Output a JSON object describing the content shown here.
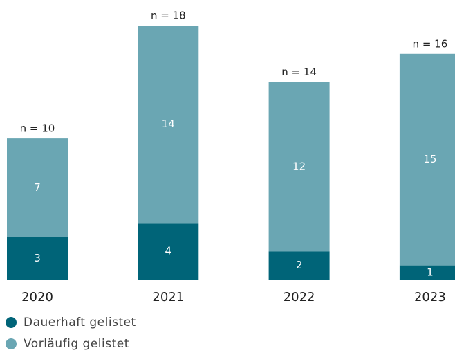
{
  "chart_data": {
    "type": "stacked_bar",
    "categories": [
      "2020",
      "2021",
      "2022",
      "2023"
    ],
    "series": [
      {
        "name": "Dauerhaft gelistet",
        "color": "#006478",
        "values": [
          3,
          4,
          2,
          1
        ]
      },
      {
        "name": "Vorläufig gelistet",
        "color": "#6aa6b3",
        "values": [
          7,
          14,
          12,
          15
        ]
      }
    ],
    "totals": [
      10,
      18,
      14,
      16
    ],
    "total_labels": [
      "n = 10",
      "n = 18",
      "n = 14",
      "n = 16"
    ],
    "ylim": [
      0,
      18
    ]
  }
}
